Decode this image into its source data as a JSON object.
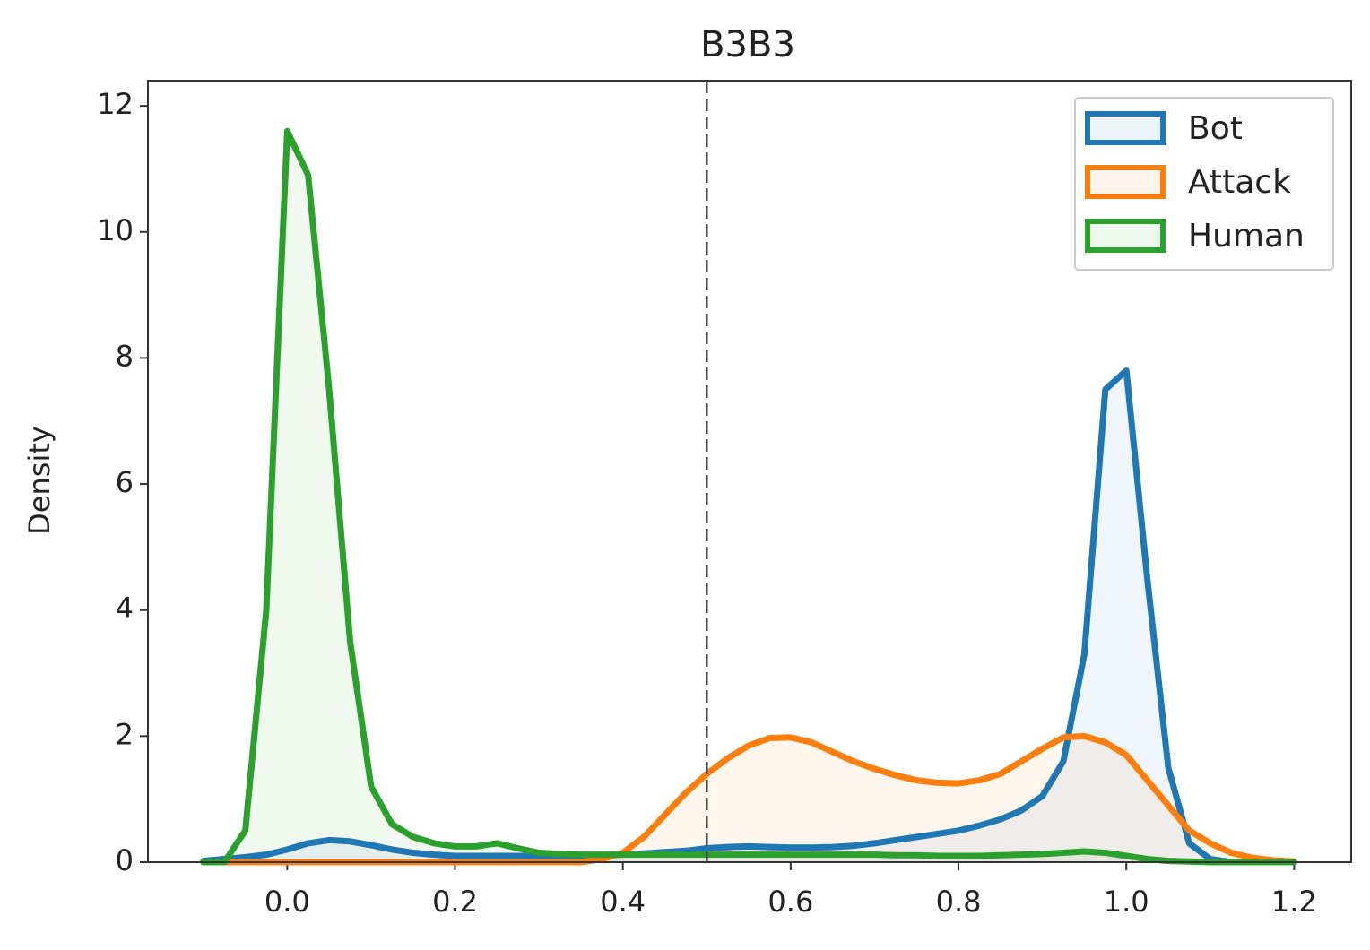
{
  "chart_data": {
    "type": "kde",
    "title": "B3B3",
    "y_label": "Density",
    "x": [
      -0.1,
      -0.075,
      -0.05,
      -0.025,
      0,
      0.025,
      0.05,
      0.075,
      0.1,
      0.125,
      0.15,
      0.175,
      0.2,
      0.225,
      0.25,
      0.275,
      0.3,
      0.325,
      0.35,
      0.375,
      0.4,
      0.425,
      0.45,
      0.475,
      0.5,
      0.525,
      0.55,
      0.575,
      0.6,
      0.625,
      0.65,
      0.675,
      0.7,
      0.725,
      0.75,
      0.775,
      0.8,
      0.825,
      0.85,
      0.875,
      0.9,
      0.925,
      0.95,
      0.975,
      1.0,
      1.025,
      1.05,
      1.075,
      1.1,
      1.125,
      1.15,
      1.175,
      1.2
    ],
    "series": [
      {
        "name": "Bot",
        "color": "#1f77b4",
        "values": [
          0.02,
          0.05,
          0.08,
          0.12,
          0.2,
          0.3,
          0.35,
          0.33,
          0.27,
          0.2,
          0.15,
          0.12,
          0.1,
          0.1,
          0.1,
          0.1,
          0.1,
          0.1,
          0.1,
          0.11,
          0.12,
          0.14,
          0.16,
          0.18,
          0.22,
          0.24,
          0.25,
          0.24,
          0.23,
          0.23,
          0.24,
          0.26,
          0.3,
          0.35,
          0.4,
          0.45,
          0.5,
          0.58,
          0.68,
          0.82,
          1.05,
          1.6,
          3.3,
          7.5,
          7.8,
          4.5,
          1.5,
          0.3,
          0.05,
          0,
          0,
          0,
          0
        ]
      },
      {
        "name": "Attack",
        "color": "#ff7f0e",
        "values": [
          0,
          0,
          0,
          0,
          0,
          0,
          0,
          0,
          0,
          0,
          0,
          0,
          0,
          0,
          0,
          0,
          0,
          0,
          0,
          0.05,
          0.15,
          0.4,
          0.75,
          1.1,
          1.4,
          1.65,
          1.85,
          1.97,
          1.98,
          1.9,
          1.75,
          1.6,
          1.48,
          1.38,
          1.3,
          1.26,
          1.25,
          1.3,
          1.4,
          1.6,
          1.8,
          1.98,
          2.0,
          1.9,
          1.7,
          1.3,
          0.9,
          0.5,
          0.3,
          0.15,
          0.07,
          0.03,
          0.01
        ]
      },
      {
        "name": "Human",
        "color": "#2ca02c",
        "values": [
          0,
          0,
          0.5,
          4,
          11.6,
          10.9,
          7.5,
          3.5,
          1.2,
          0.6,
          0.4,
          0.3,
          0.25,
          0.25,
          0.3,
          0.22,
          0.15,
          0.13,
          0.12,
          0.12,
          0.12,
          0.12,
          0.12,
          0.12,
          0.12,
          0.12,
          0.12,
          0.12,
          0.12,
          0.12,
          0.12,
          0.12,
          0.12,
          0.11,
          0.11,
          0.1,
          0.1,
          0.1,
          0.11,
          0.12,
          0.13,
          0.15,
          0.17,
          0.15,
          0.1,
          0.05,
          0.02,
          0.01,
          0,
          0,
          0,
          0,
          0
        ]
      }
    ],
    "vline": 0.5,
    "xlim": [
      -0.166,
      1.268
    ],
    "ylim": [
      0,
      12.4
    ],
    "xticks": [
      {
        "value": 0,
        "label": "0.0"
      },
      0.2,
      0.4,
      0.6,
      0.8,
      {
        "value": 1,
        "label": "1.0"
      },
      1.2
    ],
    "yticks": [
      0,
      2,
      4,
      6,
      8,
      10,
      12
    ],
    "legend": "upper right"
  }
}
